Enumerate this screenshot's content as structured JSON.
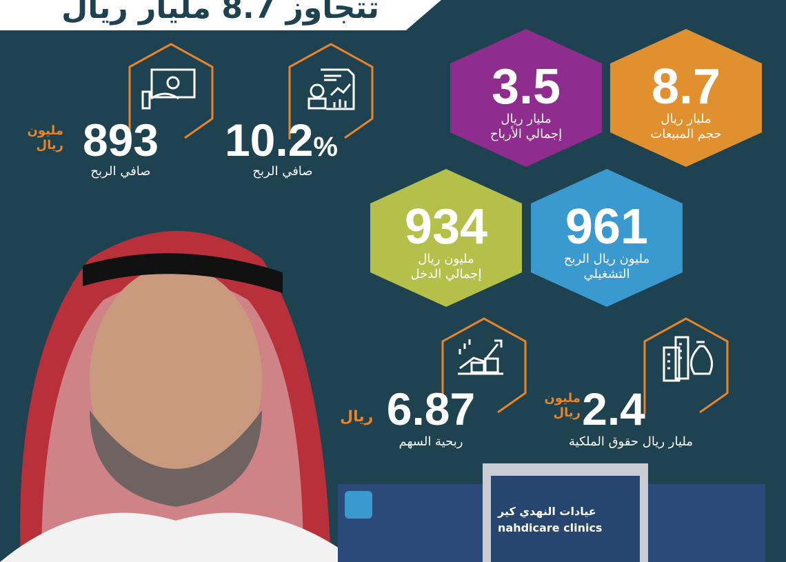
{
  "title": "تتجاوز 8.7 مليار ريال",
  "colors": {
    "background": "#1e4250",
    "accent": "#e8852a",
    "purple": "#8e2d8e",
    "orange": "#e0902e",
    "lime": "#b4c04a",
    "blue": "#3a9ad0"
  },
  "stats": [
    {
      "value": "893",
      "unit": "مليون ريال",
      "label": "صافي الربح",
      "icon": "money-hand-icon"
    },
    {
      "value": "10.2",
      "unit": "%",
      "label": "صافي الربح",
      "icon": "financial-report-icon"
    },
    {
      "value": "6.87",
      "unit": "ريال",
      "label": "ربحية السهم",
      "icon": "growth-coins-icon"
    },
    {
      "value": "2.4",
      "unit": "مليون ريال",
      "label": "مليار ريال حقوق الملكية",
      "icon": "buildings-money-bag-icon"
    }
  ],
  "hexes": [
    {
      "value": "3.5",
      "line1": "مليار ريال",
      "line2": "إجمالي الأرباح",
      "color": "#8e2d8e"
    },
    {
      "value": "8.7",
      "line1": "مليار ريال",
      "line2": "حجم المبيعات",
      "color": "#e0902e"
    },
    {
      "value": "934",
      "line1": "مليون ريال",
      "line2": "إجمالي الدخل",
      "color": "#b4c04a"
    },
    {
      "value": "961",
      "line1": "مليون ريال الربح",
      "line2": "التشغيلي",
      "color": "#3a9ad0"
    }
  ],
  "building": {
    "sign_ar": "عيادات النهدي كير",
    "sign_en": "nahdicare clinics"
  }
}
